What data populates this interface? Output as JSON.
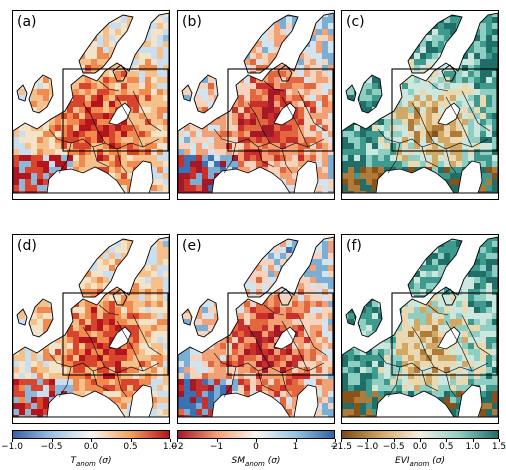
{
  "panels": [
    {
      "label": "(a)",
      "scheme": "temp_warm"
    },
    {
      "label": "(b)",
      "scheme": "sm_dry"
    },
    {
      "label": "(c)",
      "scheme": "evi"
    },
    {
      "label": "(d)",
      "scheme": "temp_warm"
    },
    {
      "label": "(e)",
      "scheme": "sm_dry"
    },
    {
      "label": "(f)",
      "scheme": "evi"
    }
  ],
  "colorbars": [
    {
      "ticks": [
        "−1.0",
        "−0.5",
        "0.0",
        "0.5",
        "1.0"
      ],
      "label_main": "T",
      "label_sub": "anom",
      "label_unit": " (σ)",
      "colors": [
        "#3b5ea8",
        "#9ec2e3",
        "#f7f7f2",
        "#f4a45e",
        "#b4141c"
      ]
    },
    {
      "ticks": [
        "−2",
        "−1",
        "0",
        "1",
        "2"
      ],
      "label_main": "SM",
      "label_sub": "anom",
      "label_unit": " (σ)",
      "colors": [
        "#a5182a",
        "#f2a074",
        "#f7f7f4",
        "#9cc5e0",
        "#2d64a8"
      ]
    },
    {
      "ticks": [
        "−1.5",
        "−1.0",
        "−0.5",
        "0.0",
        "0.5",
        "1.0",
        "1.5"
      ],
      "label_main": "EVI",
      "label_sub": "anom",
      "label_unit": " (σ)",
      "colors": [
        "#7a4a14",
        "#d2a864",
        "#f4efe2",
        "#8fcfc3",
        "#1f6e68"
      ]
    }
  ]
}
